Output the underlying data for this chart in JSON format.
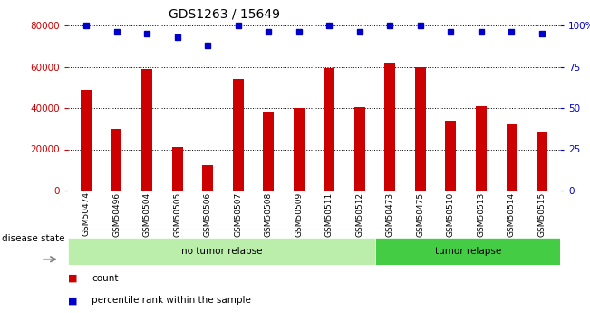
{
  "title": "GDS1263 / 15649",
  "samples": [
    "GSM50474",
    "GSM50496",
    "GSM50504",
    "GSM50505",
    "GSM50506",
    "GSM50507",
    "GSM50508",
    "GSM50509",
    "GSM50511",
    "GSM50512",
    "GSM50473",
    "GSM50475",
    "GSM50510",
    "GSM50513",
    "GSM50514",
    "GSM50515"
  ],
  "counts": [
    49000,
    30000,
    59000,
    21000,
    12500,
    54000,
    38000,
    40000,
    59500,
    40500,
    62000,
    60000,
    34000,
    41000,
    32000,
    28000
  ],
  "percentiles": [
    100,
    96,
    95,
    93,
    88,
    100,
    96,
    96,
    100,
    96,
    100,
    100,
    96,
    96,
    96,
    95
  ],
  "no_tumor_count": 10,
  "tumor_count": 6,
  "bar_color": "#cc0000",
  "dot_color": "#0000cc",
  "no_tumor_color": "#bbeeaa",
  "tumor_color": "#44cc44",
  "xtick_bg_color": "#cccccc",
  "left_axis_color": "#cc0000",
  "right_axis_color": "#0000cc",
  "ylim_left": [
    0,
    80000
  ],
  "ylim_right": [
    0,
    100
  ],
  "yticks_left": [
    0,
    20000,
    40000,
    60000,
    80000
  ],
  "yticks_right": [
    0,
    25,
    50,
    75,
    100
  ],
  "legend_count_label": "count",
  "legend_pct_label": "percentile rank within the sample",
  "disease_label": "disease state",
  "no_tumor_label": "no tumor relapse",
  "tumor_label": "tumor relapse"
}
